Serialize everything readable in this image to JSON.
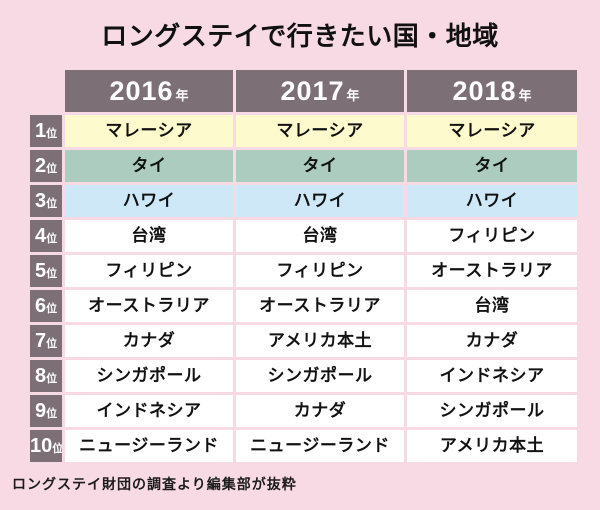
{
  "title": "ロングステイで行きたい国・地域",
  "header": {
    "years": [
      "2016",
      "2017",
      "2018"
    ],
    "year_suffix": "年"
  },
  "ranking": {
    "ranks": [
      "1",
      "2",
      "3",
      "4",
      "5",
      "6",
      "7",
      "8",
      "9",
      "10"
    ],
    "rank_suffix": "位"
  },
  "chart_data": {
    "type": "table",
    "title": "ロングステイで行きたい国・地域",
    "columns": [
      "2016年",
      "2017年",
      "2018年"
    ],
    "row_labels": [
      "1位",
      "2位",
      "3位",
      "4位",
      "5位",
      "6位",
      "7位",
      "8位",
      "9位",
      "10位"
    ],
    "rows": [
      [
        "マレーシア",
        "マレーシア",
        "マレーシア"
      ],
      [
        "タイ",
        "タイ",
        "タイ"
      ],
      [
        "ハワイ",
        "ハワイ",
        "ハワイ"
      ],
      [
        "台湾",
        "台湾",
        "フィリピン"
      ],
      [
        "フィリピン",
        "フィリピン",
        "オーストラリア"
      ],
      [
        "オーストラリア",
        "オーストラリア",
        "台湾"
      ],
      [
        "カナダ",
        "アメリカ本土",
        "カナダ"
      ],
      [
        "シンガポール",
        "シンガポール",
        "インドネシア"
      ],
      [
        "インドネシア",
        "カナダ",
        "シンガポール"
      ],
      [
        "ニュージーランド",
        "ニュージーランド",
        "アメリカ本土"
      ]
    ],
    "source": "ロングステイ財団の調査より編集部が抜粋"
  },
  "colors": {
    "page_background": "#f8dae4",
    "header_background": "#7d6f76",
    "header_text": "#ffffff",
    "rank1_row": "#fdfacd",
    "rank2_row": "#abccbe",
    "rank3_row": "#cfe8f7",
    "default_row": "#ffffff",
    "cell_text": "#121212"
  }
}
